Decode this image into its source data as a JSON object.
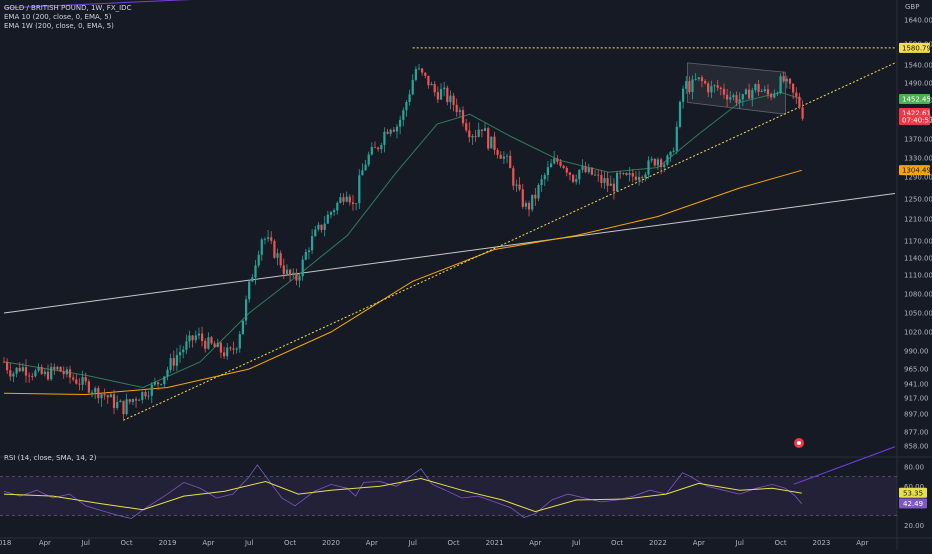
{
  "header": {
    "symbol_line": "GOLD / BRITISH POUND, 1W, FX_IDC",
    "ema1": "EMA  10 (200, close, 0, EMA, 5)",
    "ema2": "EMA  1W (200, close, 0, EMA, 5)"
  },
  "rsi_panel": {
    "label": "RSI (14, close, SMA, 14, 2)"
  },
  "colors": {
    "background": "#161a25",
    "bull": "#26a69a",
    "bear": "#ef5350",
    "ema_fast": "#2e7d5b",
    "ema_slow": "#f7a600",
    "channel": "#7b3fe4",
    "trend_dotted": "#f5e04a",
    "long_line": "#c8c8c8",
    "rsi_line": "#7e57c2",
    "rsi_ma": "#e8e04a"
  },
  "chart_data": {
    "type": "candlestick",
    "currency": "GBP",
    "y_ticks": [
      1640.0,
      1590.0,
      1540.0,
      1490.0,
      1450.0,
      1410.0,
      1370.0,
      1330.0,
      1290.0,
      1250.0,
      1210.0,
      1170.0,
      1140.0,
      1110.0,
      1080.0,
      1050.0,
      1020.0,
      990.0,
      965.0,
      941.0,
      917.0,
      897.0,
      877.0,
      858.0
    ],
    "x_ticks": [
      {
        "label": "2018",
        "year": 2017.99
      },
      {
        "label": "Apr",
        "year": 2018.25
      },
      {
        "label": "Jul",
        "year": 2018.5
      },
      {
        "label": "Oct",
        "year": 2018.75
      },
      {
        "label": "2019",
        "year": 2019.0
      },
      {
        "label": "Apr",
        "year": 2019.25
      },
      {
        "label": "Jul",
        "year": 2019.5
      },
      {
        "label": "Oct",
        "year": 2019.75
      },
      {
        "label": "2020",
        "year": 2020.0
      },
      {
        "label": "Apr",
        "year": 2020.25
      },
      {
        "label": "Jul",
        "year": 2020.5
      },
      {
        "label": "Oct",
        "year": 2020.75
      },
      {
        "label": "2021",
        "year": 2021.0
      },
      {
        "label": "Apr",
        "year": 2021.25
      },
      {
        "label": "Jul",
        "year": 2021.5
      },
      {
        "label": "Oct",
        "year": 2021.75
      },
      {
        "label": "2022",
        "year": 2022.0
      },
      {
        "label": "Apr",
        "year": 2022.25
      },
      {
        "label": "Jul",
        "year": 2022.5
      },
      {
        "label": "Oct",
        "year": 2022.75
      },
      {
        "label": "2023",
        "year": 2023.0
      },
      {
        "label": "Apr",
        "year": 2023.25
      }
    ],
    "price_path": [
      [
        2018.0,
        975
      ],
      [
        2018.05,
        958
      ],
      [
        2018.1,
        968
      ],
      [
        2018.17,
        960
      ],
      [
        2018.25,
        955
      ],
      [
        2018.33,
        965
      ],
      [
        2018.4,
        952
      ],
      [
        2018.5,
        940
      ],
      [
        2018.55,
        930
      ],
      [
        2018.62,
        922
      ],
      [
        2018.68,
        910
      ],
      [
        2018.73,
        905
      ],
      [
        2018.8,
        918
      ],
      [
        2018.88,
        930
      ],
      [
        2018.95,
        945
      ],
      [
        2019.0,
        965
      ],
      [
        2019.06,
        985
      ],
      [
        2019.12,
        1000
      ],
      [
        2019.18,
        1015
      ],
      [
        2019.22,
        1005
      ],
      [
        2019.27,
        998
      ],
      [
        2019.33,
        990
      ],
      [
        2019.38,
        985
      ],
      [
        2019.42,
        1000
      ],
      [
        2019.46,
        1040
      ],
      [
        2019.5,
        1090
      ],
      [
        2019.55,
        1150
      ],
      [
        2019.58,
        1180
      ],
      [
        2019.62,
        1165
      ],
      [
        2019.68,
        1140
      ],
      [
        2019.72,
        1115
      ],
      [
        2019.78,
        1100
      ],
      [
        2019.82,
        1125
      ],
      [
        2019.86,
        1160
      ],
      [
        2019.9,
        1180
      ],
      [
        2019.95,
        1200
      ],
      [
        2020.0,
        1225
      ],
      [
        2020.05,
        1245
      ],
      [
        2020.1,
        1270
      ],
      [
        2020.14,
        1230
      ],
      [
        2020.18,
        1290
      ],
      [
        2020.22,
        1330
      ],
      [
        2020.28,
        1350
      ],
      [
        2020.32,
        1380
      ],
      [
        2020.36,
        1400
      ],
      [
        2020.4,
        1395
      ],
      [
        2020.44,
        1420
      ],
      [
        2020.48,
        1470
      ],
      [
        2020.52,
        1530
      ],
      [
        2020.56,
        1510
      ],
      [
        2020.6,
        1490
      ],
      [
        2020.64,
        1465
      ],
      [
        2020.68,
        1470
      ],
      [
        2020.72,
        1450
      ],
      [
        2020.76,
        1440
      ],
      [
        2020.8,
        1420
      ],
      [
        2020.84,
        1390
      ],
      [
        2020.88,
        1380
      ],
      [
        2020.92,
        1400
      ],
      [
        2020.96,
        1365
      ],
      [
        2021.0,
        1355
      ],
      [
        2021.04,
        1340
      ],
      [
        2021.08,
        1320
      ],
      [
        2021.12,
        1280
      ],
      [
        2021.16,
        1250
      ],
      [
        2021.2,
        1230
      ],
      [
        2021.24,
        1250
      ],
      [
        2021.28,
        1275
      ],
      [
        2021.32,
        1300
      ],
      [
        2021.36,
        1320
      ],
      [
        2021.4,
        1325
      ],
      [
        2021.44,
        1310
      ],
      [
        2021.48,
        1290
      ],
      [
        2021.52,
        1305
      ],
      [
        2021.56,
        1300
      ],
      [
        2021.6,
        1295
      ],
      [
        2021.64,
        1285
      ],
      [
        2021.68,
        1280
      ],
      [
        2021.72,
        1270
      ],
      [
        2021.76,
        1290
      ],
      [
        2021.8,
        1285
      ],
      [
        2021.84,
        1290
      ],
      [
        2021.88,
        1300
      ],
      [
        2021.92,
        1305
      ],
      [
        2021.96,
        1320
      ],
      [
        2022.0,
        1330
      ],
      [
        2022.04,
        1320
      ],
      [
        2022.08,
        1330
      ],
      [
        2022.12,
        1400
      ],
      [
        2022.16,
        1490
      ],
      [
        2022.2,
        1480
      ],
      [
        2022.24,
        1500
      ],
      [
        2022.28,
        1490
      ],
      [
        2022.32,
        1475
      ],
      [
        2022.36,
        1480
      ],
      [
        2022.4,
        1470
      ],
      [
        2022.44,
        1460
      ],
      [
        2022.48,
        1455
      ],
      [
        2022.52,
        1450
      ],
      [
        2022.56,
        1470
      ],
      [
        2022.6,
        1480
      ],
      [
        2022.64,
        1470
      ],
      [
        2022.68,
        1460
      ],
      [
        2022.72,
        1475
      ],
      [
        2022.76,
        1500
      ],
      [
        2022.8,
        1480
      ],
      [
        2022.83,
        1460
      ],
      [
        2022.86,
        1445
      ],
      [
        2022.88,
        1423
      ]
    ],
    "ema_fast_path": [
      [
        2018.0,
        975
      ],
      [
        2018.5,
        955
      ],
      [
        2018.85,
        935
      ],
      [
        2019.2,
        975
      ],
      [
        2019.5,
        1050
      ],
      [
        2019.8,
        1110
      ],
      [
        2020.1,
        1180
      ],
      [
        2020.4,
        1300
      ],
      [
        2020.65,
        1400
      ],
      [
        2020.85,
        1420
      ],
      [
        2021.1,
        1375
      ],
      [
        2021.4,
        1325
      ],
      [
        2021.7,
        1300
      ],
      [
        2022.0,
        1310
      ],
      [
        2022.25,
        1380
      ],
      [
        2022.5,
        1445
      ],
      [
        2022.75,
        1468
      ],
      [
        2022.88,
        1452
      ]
    ],
    "ema_slow_path": [
      [
        2018.0,
        925
      ],
      [
        2018.5,
        923
      ],
      [
        2019.0,
        935
      ],
      [
        2019.5,
        965
      ],
      [
        2020.0,
        1020
      ],
      [
        2020.5,
        1100
      ],
      [
        2021.0,
        1155
      ],
      [
        2021.5,
        1180
      ],
      [
        2022.0,
        1215
      ],
      [
        2022.5,
        1270
      ],
      [
        2022.88,
        1304
      ]
    ],
    "channel_upper": [
      [
        2018.0,
        1665
      ],
      [
        2022.53,
        1735
      ]
    ],
    "channel_lower": [
      [
        2022.83,
        806
      ],
      [
        2023.45,
        857
      ]
    ],
    "trend_dotted": [
      [
        2018.73,
        890
      ],
      [
        2023.45,
        1545
      ]
    ],
    "resistance_dotted": {
      "y": 1580.79,
      "from": 2020.5,
      "to": 2023.45
    },
    "long_line": [
      [
        2018.0,
        1050
      ],
      [
        2023.45,
        1260
      ]
    ],
    "flag_upper": [
      [
        2022.18,
        1545
      ],
      [
        2022.78,
        1520
      ]
    ],
    "flag_lower": [
      [
        2022.18,
        1445
      ],
      [
        2022.78,
        1420
      ]
    ],
    "price_tags": [
      {
        "value": "1580.79",
        "price": 1580.79,
        "bg": "#f5e04a",
        "fg": "#131722"
      },
      {
        "value": "1452.45",
        "price": 1452.45,
        "bg": "#4caf50",
        "fg": "#ffffff"
      },
      {
        "value": "1422.61",
        "price": 1422.61,
        "bg": "#f23645",
        "fg": "#ffffff"
      },
      {
        "value": "07:40:53",
        "price": 1408.0,
        "bg": "#f23645",
        "fg": "#ffffff"
      },
      {
        "value": "1304.49",
        "price": 1304.49,
        "bg": "#f7a600",
        "fg": "#131722"
      }
    ],
    "rsi": {
      "y_ticks": [
        80.0,
        60.0,
        40.0,
        20.0
      ],
      "upper_band": 70,
      "lower_band": 30,
      "tags": [
        {
          "value": "53.35",
          "rsi": 53.35,
          "bg": "#e8e04a",
          "fg": "#131722"
        },
        {
          "value": "42.49",
          "rsi": 42.49,
          "bg": "#7e57c2",
          "fg": "#ffffff"
        }
      ],
      "line_path": [
        [
          2018.0,
          55
        ],
        [
          2018.1,
          50
        ],
        [
          2018.2,
          56
        ],
        [
          2018.3,
          48
        ],
        [
          2018.4,
          52
        ],
        [
          2018.5,
          40
        ],
        [
          2018.6,
          35
        ],
        [
          2018.7,
          30
        ],
        [
          2018.78,
          27
        ],
        [
          2018.85,
          36
        ],
        [
          2019.0,
          52
        ],
        [
          2019.1,
          64
        ],
        [
          2019.2,
          58
        ],
        [
          2019.3,
          48
        ],
        [
          2019.4,
          52
        ],
        [
          2019.5,
          70
        ],
        [
          2019.55,
          82
        ],
        [
          2019.62,
          66
        ],
        [
          2019.7,
          48
        ],
        [
          2019.78,
          40
        ],
        [
          2019.9,
          55
        ],
        [
          2020.0,
          62
        ],
        [
          2020.1,
          58
        ],
        [
          2020.15,
          50
        ],
        [
          2020.2,
          64
        ],
        [
          2020.3,
          65
        ],
        [
          2020.4,
          60
        ],
        [
          2020.5,
          72
        ],
        [
          2020.55,
          78
        ],
        [
          2020.62,
          62
        ],
        [
          2020.7,
          56
        ],
        [
          2020.8,
          48
        ],
        [
          2020.9,
          50
        ],
        [
          2021.0,
          44
        ],
        [
          2021.1,
          38
        ],
        [
          2021.18,
          28
        ],
        [
          2021.25,
          32
        ],
        [
          2021.35,
          46
        ],
        [
          2021.45,
          52
        ],
        [
          2021.55,
          48
        ],
        [
          2021.65,
          44
        ],
        [
          2021.75,
          46
        ],
        [
          2021.85,
          50
        ],
        [
          2021.95,
          56
        ],
        [
          2022.05,
          52
        ],
        [
          2022.15,
          74
        ],
        [
          2022.2,
          70
        ],
        [
          2022.3,
          60
        ],
        [
          2022.4,
          56
        ],
        [
          2022.5,
          52
        ],
        [
          2022.6,
          58
        ],
        [
          2022.7,
          62
        ],
        [
          2022.78,
          58
        ],
        [
          2022.84,
          50
        ],
        [
          2022.88,
          42
        ]
      ],
      "ma_path": [
        [
          2018.0,
          52
        ],
        [
          2018.3,
          50
        ],
        [
          2018.6,
          42
        ],
        [
          2018.85,
          36
        ],
        [
          2019.1,
          50
        ],
        [
          2019.35,
          55
        ],
        [
          2019.6,
          65
        ],
        [
          2019.8,
          52
        ],
        [
          2020.0,
          56
        ],
        [
          2020.3,
          60
        ],
        [
          2020.55,
          68
        ],
        [
          2020.8,
          56
        ],
        [
          2021.05,
          46
        ],
        [
          2021.25,
          34
        ],
        [
          2021.5,
          46
        ],
        [
          2021.8,
          47
        ],
        [
          2022.05,
          52
        ],
        [
          2022.25,
          63
        ],
        [
          2022.5,
          56
        ],
        [
          2022.7,
          58
        ],
        [
          2022.88,
          53
        ]
      ]
    }
  }
}
